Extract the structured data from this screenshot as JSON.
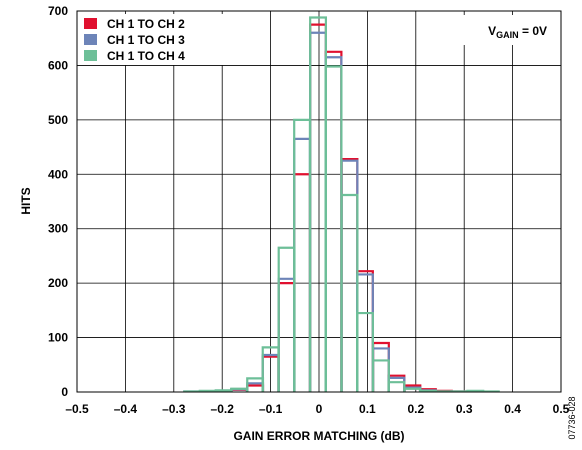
{
  "chart_data": {
    "type": "bar",
    "xlabel": "GAIN ERROR MATCHING (dB)",
    "ylabel": "HITS",
    "xlim": [
      -0.5,
      0.5
    ],
    "ylim": [
      0,
      700
    ],
    "xticks": [
      -0.5,
      -0.4,
      -0.3,
      -0.2,
      -0.1,
      0,
      0.1,
      0.2,
      0.3,
      0.4,
      0.5
    ],
    "xtick_labels": [
      "–0.5",
      "–0.4",
      "–0.3",
      "–0.2",
      "–0.1",
      "0",
      "0.1",
      "0.2",
      "0.3",
      "0.4",
      "0.5"
    ],
    "yticks": [
      0,
      100,
      200,
      300,
      400,
      500,
      600,
      700
    ],
    "ytick_labels": [
      "0",
      "100",
      "200",
      "300",
      "400",
      "500",
      "600",
      "700"
    ],
    "grid": true,
    "bin_width": 0.0325,
    "bin_centers": [
      -0.262,
      -0.23,
      -0.197,
      -0.165,
      -0.132,
      -0.1,
      -0.067,
      -0.035,
      -0.002,
      0.03,
      0.063,
      0.095,
      0.128,
      0.16,
      0.193,
      0.225,
      0.258,
      0.29,
      0.323,
      0.355
    ],
    "series": [
      {
        "name": "CH 1 TO CH 2",
        "color": "#e0102f",
        "values": [
          0,
          1,
          2,
          4,
          12,
          65,
          200,
          400,
          675,
          625,
          428,
          222,
          90,
          30,
          12,
          5,
          2,
          1,
          1,
          0
        ]
      },
      {
        "name": "CH 1 TO CH 3",
        "color": "#6d84b8",
        "values": [
          1,
          1,
          2,
          5,
          16,
          68,
          208,
          465,
          660,
          615,
          425,
          216,
          80,
          26,
          8,
          3,
          1,
          1,
          0,
          0
        ]
      },
      {
        "name": "CH 1 TO CH 4",
        "color": "#6dbf98",
        "values": [
          1,
          2,
          3,
          6,
          25,
          82,
          265,
          500,
          688,
          598,
          362,
          145,
          58,
          18,
          6,
          2,
          1,
          1,
          2,
          1
        ]
      }
    ],
    "legend_position": "top-left",
    "annotation": {
      "prefix": "V",
      "subscript": "GAIN",
      "suffix": " = 0V"
    },
    "figure_code": "07736-028"
  }
}
